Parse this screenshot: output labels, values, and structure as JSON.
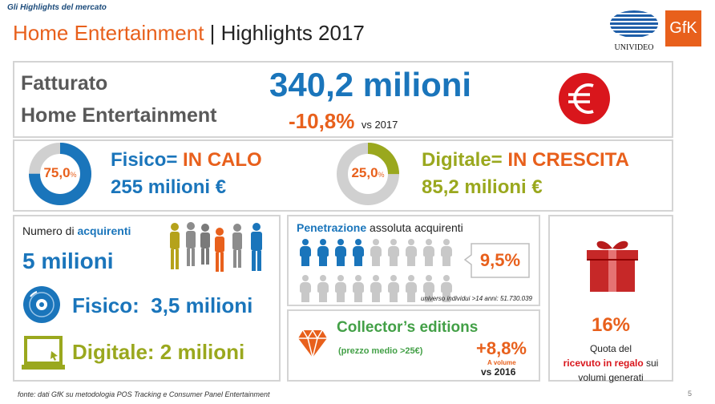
{
  "header": {
    "section_label": "Gli Highlights del mercato",
    "title_part1": "Home Entertainment",
    "title_separator": " | ",
    "title_part2": "Highlights 2017",
    "logo_univideo": "UNIVIDEO",
    "logo_gfk": "GfK"
  },
  "revenue": {
    "label_line1": "Fatturato",
    "label_line2": "Home Entertainment",
    "amount": "340,2 milioni",
    "change": "-10,8%",
    "change_suffix": "vs 2017"
  },
  "physical": {
    "percent": "75,0",
    "percent_sign": "%",
    "share": 0.75,
    "title_prefix": "Fisico= ",
    "title_status": "IN CALO",
    "amount": "255 milioni €"
  },
  "digital": {
    "percent": "25,0",
    "percent_sign": "%",
    "share": 0.25,
    "title_prefix": "Digitale= ",
    "title_status": "IN CRESCITA",
    "amount": "85,2 milioni €"
  },
  "buyers": {
    "label_prefix": "Numero di ",
    "label_highlight": "acquirenti",
    "total": "5 milioni",
    "physical": "Fisico:  3,5 milioni",
    "digital": "Digitale: 2 milioni"
  },
  "penetration": {
    "title_highlight": "Penetrazione",
    "title_rest": " assoluta acquirenti",
    "value": "9,5%",
    "highlighted_people": 4,
    "total_people": 18,
    "note": "universo individui >14 anni: 51.730.039"
  },
  "collector": {
    "title": "Collector’s editions",
    "subtitle": "(prezzo medio >25€)",
    "growth": "+8,8%",
    "growth_label": "A volume",
    "growth_suffix": "vs 2016"
  },
  "gift": {
    "percent": "16%",
    "line1": "Quota del",
    "highlight": "ricevuto in regalo",
    "line2_rest": " sui",
    "line3": "volumi generati"
  },
  "footer": {
    "source": "fonte: dati GfK su metodologia POS Tracking e Consumer Panel Entertainment",
    "page_number": "5"
  },
  "colors": {
    "orange": "#e8601c",
    "blue": "#1a75bb",
    "green": "#9aa81e",
    "grey_text": "#595959",
    "red": "#d9161c",
    "donut_bg": "#d0d0d0"
  }
}
